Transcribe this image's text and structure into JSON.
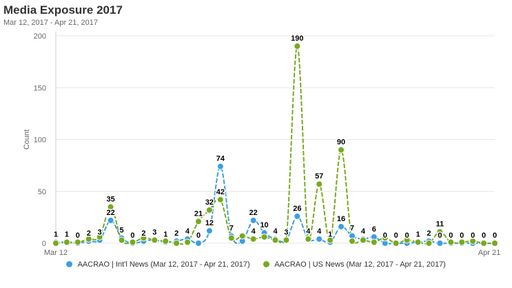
{
  "header": {
    "title": "Media Exposure 2017",
    "subtitle": "Mar 12, 2017 - Apr 21, 2017"
  },
  "colors": {
    "intl": "#3a9ee4",
    "us": "#76aa1e"
  },
  "chart_data": {
    "type": "line",
    "title": "Media Exposure 2017",
    "subtitle": "Mar 12, 2017 - Apr 21, 2017",
    "xlabel": "",
    "ylabel": "Count",
    "ylim": [
      0,
      200
    ],
    "yticks": [
      "0",
      "50",
      "100",
      "150",
      "200"
    ],
    "x_start_label": "Mar 12",
    "x_end_label": "Apr 21",
    "grid": true,
    "legend_position": "bottom",
    "x": [
      "2017-03-12",
      "2017-03-13",
      "2017-03-14",
      "2017-03-15",
      "2017-03-16",
      "2017-03-17",
      "2017-03-18",
      "2017-03-19",
      "2017-03-20",
      "2017-03-21",
      "2017-03-22",
      "2017-03-23",
      "2017-03-24",
      "2017-03-25",
      "2017-03-26",
      "2017-03-27",
      "2017-03-28",
      "2017-03-29",
      "2017-03-30",
      "2017-03-31",
      "2017-04-01",
      "2017-04-02",
      "2017-04-03",
      "2017-04-04",
      "2017-04-05",
      "2017-04-06",
      "2017-04-07",
      "2017-04-08",
      "2017-04-09",
      "2017-04-10",
      "2017-04-11",
      "2017-04-12",
      "2017-04-13",
      "2017-04-14",
      "2017-04-15",
      "2017-04-16",
      "2017-04-17",
      "2017-04-18",
      "2017-04-19",
      "2017-04-20",
      "2017-04-21"
    ],
    "series": [
      {
        "name": "AACRAO | Int'l News (Mar 12, 2017 - Apr 21, 2017)",
        "color": "#3a9ee4",
        "values": [
          1,
          1,
          0,
          2,
          3,
          22,
          5,
          0,
          2,
          3,
          1,
          2,
          4,
          0,
          12,
          74,
          7,
          2,
          22,
          10,
          4,
          3,
          26,
          4,
          4,
          1,
          16,
          7,
          4,
          6,
          0,
          0,
          0,
          1,
          2,
          0,
          0,
          0,
          0,
          0,
          0
        ]
      },
      {
        "name": "AACRAO | US News (Mar 12, 2017 - Apr 21, 2017)",
        "color": "#76aa1e",
        "values": [
          0,
          1,
          1,
          4,
          6,
          35,
          3,
          1,
          5,
          3,
          2,
          0,
          1,
          21,
          32,
          42,
          5,
          7,
          4,
          6,
          3,
          3,
          190,
          4,
          57,
          3,
          90,
          2,
          3,
          1,
          5,
          0,
          3,
          1,
          0,
          11,
          1,
          1,
          2,
          0,
          0
        ]
      }
    ],
    "data_labels": [
      {
        "i": 0,
        "text": "1"
      },
      {
        "i": 1,
        "text": "1"
      },
      {
        "i": 2,
        "text": "0"
      },
      {
        "i": 3,
        "text": "2"
      },
      {
        "i": 4,
        "text": "3"
      },
      {
        "i": 5,
        "text": "35"
      },
      {
        "i": 5,
        "text": "22"
      },
      {
        "i": 6,
        "text": "5"
      },
      {
        "i": 7,
        "text": "0"
      },
      {
        "i": 8,
        "text": "2"
      },
      {
        "i": 9,
        "text": "3"
      },
      {
        "i": 10,
        "text": "1"
      },
      {
        "i": 11,
        "text": "2"
      },
      {
        "i": 12,
        "text": "4"
      },
      {
        "i": 13,
        "text": "21"
      },
      {
        "i": 13,
        "text": "0"
      },
      {
        "i": 14,
        "text": "32"
      },
      {
        "i": 14,
        "text": "12"
      },
      {
        "i": 15,
        "text": "74"
      },
      {
        "i": 15,
        "text": "42"
      },
      {
        "i": 16,
        "text": "7"
      },
      {
        "i": 18,
        "text": "22"
      },
      {
        "i": 18,
        "text": "4"
      },
      {
        "i": 19,
        "text": "10"
      },
      {
        "i": 20,
        "text": "4"
      },
      {
        "i": 21,
        "text": "3"
      },
      {
        "i": 22,
        "text": "190"
      },
      {
        "i": 22,
        "text": "26"
      },
      {
        "i": 23,
        "text": "4"
      },
      {
        "i": 24,
        "text": "57"
      },
      {
        "i": 24,
        "text": "4"
      },
      {
        "i": 25,
        "text": "1"
      },
      {
        "i": 26,
        "text": "90"
      },
      {
        "i": 26,
        "text": "16"
      },
      {
        "i": 27,
        "text": "7"
      },
      {
        "i": 28,
        "text": "4"
      },
      {
        "i": 29,
        "text": "6"
      },
      {
        "i": 30,
        "text": "0"
      },
      {
        "i": 31,
        "text": "0"
      },
      {
        "i": 32,
        "text": "0"
      },
      {
        "i": 33,
        "text": "1"
      },
      {
        "i": 34,
        "text": "2"
      },
      {
        "i": 35,
        "text": "11"
      },
      {
        "i": 35,
        "text": "0"
      },
      {
        "i": 36,
        "text": "0"
      },
      {
        "i": 37,
        "text": "0"
      },
      {
        "i": 38,
        "text": "0"
      },
      {
        "i": 39,
        "text": "0"
      },
      {
        "i": 40,
        "text": "0"
      }
    ]
  }
}
